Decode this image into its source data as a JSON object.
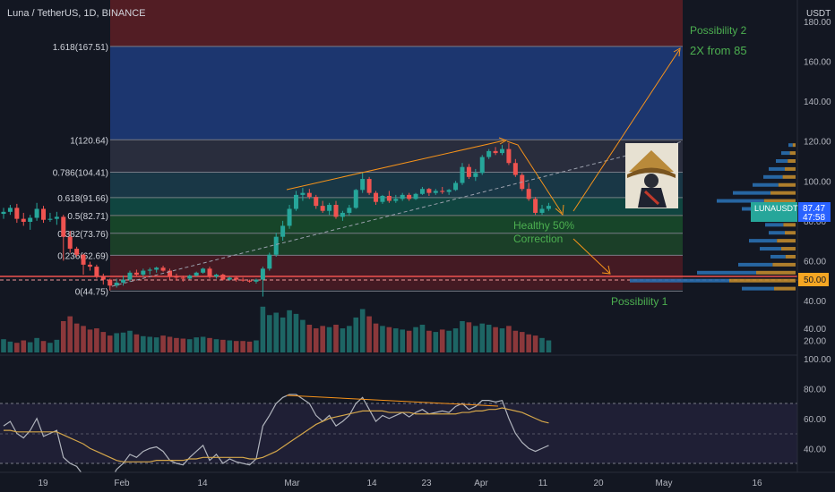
{
  "header": {
    "symbol_title": "Luna / TetherUS, 1D, BINANCE",
    "currency": "USDT"
  },
  "colors": {
    "background": "#131722",
    "up_candle": "#26a69a",
    "down_candle": "#ef5350",
    "annotation_orange": "#f7931a",
    "annotation_green": "#4caf50",
    "rsi_line": "#b0b4bd",
    "rsi_ma": "#d4a64a",
    "price_label_blue": "#2962ff"
  },
  "chart_data": [
    {
      "type": "candlestick",
      "title": "Luna / TetherUS, 1D, BINANCE",
      "ylabel": "USDT",
      "ylim": [
        40,
        185
      ],
      "y_ticks": [
        40,
        60,
        80,
        100,
        120,
        140,
        160,
        180
      ],
      "y_tick_labels": [
        "40.00",
        "60.00",
        "80.00",
        "100.00",
        "120.00",
        "140.00",
        "160.00",
        "180.00"
      ],
      "x_tick_labels": [
        "19",
        "Feb",
        "14",
        "Mar",
        "14",
        "23",
        "Apr",
        "11",
        "20",
        "May",
        "16"
      ],
      "candles": [
        [
          83.5,
          86.5,
          81.0,
          84.5
        ],
        [
          84.5,
          88.0,
          83.0,
          86.5
        ],
        [
          86.5,
          88.5,
          79.0,
          81.0
        ],
        [
          81.0,
          84.0,
          77.5,
          79.5
        ],
        [
          79.5,
          83.0,
          75.5,
          81.5
        ],
        [
          81.5,
          89.0,
          80.0,
          86.0
        ],
        [
          86.0,
          87.5,
          79.0,
          80.5
        ],
        [
          80.5,
          84.0,
          79.5,
          81.0
        ],
        [
          81.0,
          84.5,
          78.0,
          82.0
        ],
        [
          82.0,
          83.0,
          60.0,
          72.0
        ],
        [
          72.0,
          75.0,
          64.0,
          66.0
        ],
        [
          66.0,
          67.0,
          62.0,
          63.0
        ],
        [
          63.0,
          63.5,
          53.0,
          58.0
        ],
        [
          58.0,
          59.5,
          55.0,
          57.0
        ],
        [
          57.0,
          58.0,
          51.0,
          52.0
        ],
        [
          52.0,
          53.5,
          48.0,
          50.5
        ],
        [
          50.5,
          51.0,
          45.0,
          47.5
        ],
        [
          47.5,
          51.0,
          46.5,
          49.0
        ],
        [
          49.0,
          52.5,
          47.5,
          50.5
        ],
        [
          50.5,
          55.0,
          49.5,
          54.0
        ],
        [
          54.0,
          55.5,
          52.0,
          53.0
        ],
        [
          53.0,
          56.0,
          52.0,
          55.0
        ],
        [
          55.0,
          56.5,
          53.0,
          55.5
        ],
        [
          55.5,
          57.0,
          54.0,
          56.5
        ],
        [
          56.5,
          57.5,
          54.5,
          55.0
        ],
        [
          55.0,
          56.0,
          50.5,
          52.0
        ],
        [
          52.0,
          53.5,
          50.0,
          51.5
        ],
        [
          51.5,
          52.5,
          49.5,
          51.0
        ],
        [
          51.0,
          53.0,
          50.5,
          52.5
        ],
        [
          52.5,
          54.5,
          52.0,
          54.0
        ],
        [
          54.0,
          56.5,
          53.5,
          56.0
        ],
        [
          56.0,
          57.0,
          51.0,
          52.0
        ],
        [
          52.0,
          53.5,
          51.0,
          53.0
        ],
        [
          53.0,
          53.5,
          50.0,
          50.5
        ],
        [
          50.5,
          52.0,
          50.0,
          51.5
        ],
        [
          51.5,
          52.0,
          49.5,
          50.5
        ],
        [
          50.5,
          51.5,
          49.5,
          50.0
        ],
        [
          50.0,
          50.5,
          49.0,
          49.5
        ],
        [
          49.5,
          51.0,
          48.5,
          50.5
        ],
        [
          50.5,
          57.0,
          42.0,
          56.0
        ],
        [
          56.0,
          64.0,
          55.0,
          63.0
        ],
        [
          63.0,
          74.0,
          62.0,
          72.0
        ],
        [
          72.0,
          80.0,
          70.0,
          77.5
        ],
        [
          77.5,
          88.0,
          76.0,
          86.0
        ],
        [
          86.0,
          95.0,
          85.0,
          93.0
        ],
        [
          93.0,
          96.5,
          90.0,
          94.0
        ],
        [
          94.0,
          96.0,
          91.0,
          92.0
        ],
        [
          92.0,
          93.0,
          86.0,
          87.5
        ],
        [
          87.5,
          90.0,
          84.0,
          85.0
        ],
        [
          85.0,
          89.0,
          83.0,
          88.0
        ],
        [
          88.0,
          90.0,
          81.0,
          82.0
        ],
        [
          82.0,
          85.0,
          80.0,
          84.0
        ],
        [
          84.0,
          88.0,
          82.5,
          86.5
        ],
        [
          86.5,
          96.0,
          86.0,
          95.5
        ],
        [
          95.5,
          104.0,
          94.0,
          101.0
        ],
        [
          101.0,
          102.0,
          93.0,
          94.0
        ],
        [
          94.0,
          95.0,
          88.0,
          89.5
        ],
        [
          89.5,
          93.0,
          88.5,
          92.5
        ],
        [
          92.5,
          95.0,
          89.0,
          90.0
        ],
        [
          90.0,
          93.0,
          89.0,
          91.0
        ],
        [
          91.0,
          94.0,
          90.0,
          93.0
        ],
        [
          93.0,
          94.0,
          90.0,
          91.0
        ],
        [
          91.0,
          94.0,
          90.5,
          93.5
        ],
        [
          93.5,
          97.0,
          93.0,
          96.0
        ],
        [
          96.0,
          96.5,
          92.5,
          94.0
        ],
        [
          94.0,
          96.0,
          93.0,
          95.0
        ],
        [
          95.0,
          97.0,
          93.5,
          94.5
        ],
        [
          94.5,
          96.0,
          93.0,
          95.5
        ],
        [
          95.5,
          100.0,
          95.0,
          99.0
        ],
        [
          99.0,
          109.0,
          98.0,
          107.0
        ],
        [
          107.0,
          108.5,
          101.0,
          102.0
        ],
        [
          102.0,
          106.0,
          100.0,
          104.0
        ],
        [
          104.0,
          113.0,
          103.0,
          112.0
        ],
        [
          112.0,
          116.0,
          111.0,
          115.0
        ],
        [
          115.0,
          117.0,
          113.0,
          114.0
        ],
        [
          114.0,
          118.0,
          113.0,
          116.0
        ],
        [
          116.0,
          119.0,
          108.0,
          109.0
        ],
        [
          109.0,
          111.0,
          102.0,
          103.0
        ],
        [
          103.0,
          104.0,
          95.0,
          96.0
        ],
        [
          96.0,
          99.0,
          90.0,
          91.0
        ],
        [
          91.0,
          92.0,
          83.0,
          84.0
        ],
        [
          84.0,
          88.0,
          83.0,
          86.0
        ],
        [
          86.0,
          89.0,
          85.0,
          87.5
        ]
      ],
      "volumes": [
        22,
        18,
        16,
        20,
        17,
        24,
        19,
        16,
        21,
        52,
        60,
        48,
        44,
        38,
        40,
        34,
        28,
        32,
        33,
        36,
        30,
        27,
        26,
        25,
        28,
        26,
        24,
        23,
        22,
        25,
        26,
        24,
        22,
        21,
        20,
        19,
        19,
        18,
        20,
        76,
        62,
        66,
        58,
        70,
        64,
        54,
        46,
        40,
        44,
        42,
        46,
        40,
        44,
        58,
        72,
        60,
        48,
        44,
        42,
        40,
        38,
        36,
        42,
        46,
        36,
        34,
        38,
        36,
        40,
        52,
        50,
        44,
        48,
        46,
        42,
        40,
        44,
        36,
        34,
        30,
        28,
        24,
        20
      ],
      "volume_panel": {
        "ylim": [
          0,
          95
        ],
        "y_ticks": [
          20,
          40
        ],
        "y_tick_labels": [
          "20.00",
          "40.00"
        ]
      },
      "fibonacci_levels": [
        {
          "label": "1.618(167.51)",
          "price": 167.51
        },
        {
          "label": "1(120.64)",
          "price": 120.64
        },
        {
          "label": "0.786(104.41)",
          "price": 104.41
        },
        {
          "label": "0.618(91.66)",
          "price": 91.66
        },
        {
          "label": "0.5(82.71)",
          "price": 82.71
        },
        {
          "label": "0.382(73.76)",
          "price": 73.76
        },
        {
          "label": "0.236(62.69)",
          "price": 62.69
        },
        {
          "label": "0(44.75)",
          "price": 44.75
        }
      ],
      "annotations": [
        {
          "text": "Possibility 2",
          "color": "#4caf50"
        },
        {
          "text": "2X from 85",
          "color": "#4caf50"
        },
        {
          "text": "Healthy 50%",
          "color": "#4caf50"
        },
        {
          "text": "Correction",
          "color": "#4caf50"
        },
        {
          "text": "Possibility 1",
          "color": "#4caf50"
        }
      ],
      "price_labels": [
        {
          "text": "LUNAUSDT",
          "value": 87.47,
          "value_text": "87.47",
          "countdown": "47:58"
        },
        {
          "value": 50.0,
          "value_text": "50.00"
        }
      ]
    },
    {
      "type": "line",
      "title": "",
      "ylim": [
        20,
        100
      ],
      "y_ticks": [
        40,
        60,
        80,
        100
      ],
      "y_tick_labels": [
        "40.00",
        "60.00",
        "80.00",
        "100.00"
      ],
      "bands": [
        30,
        50,
        70
      ],
      "series": [
        {
          "values": [
            55,
            58,
            50,
            47,
            52,
            60,
            48,
            50,
            52,
            34,
            30,
            28,
            22,
            24,
            20,
            22,
            18,
            26,
            30,
            36,
            34,
            38,
            40,
            41,
            38,
            32,
            30,
            29,
            34,
            38,
            42,
            32,
            36,
            30,
            33,
            31,
            30,
            29,
            33,
            55,
            62,
            70,
            74,
            76,
            76,
            73,
            70,
            62,
            58,
            62,
            55,
            58,
            62,
            70,
            74,
            66,
            58,
            62,
            60,
            62,
            64,
            61,
            64,
            66,
            63,
            64,
            65,
            64,
            68,
            70,
            66,
            68,
            72,
            72,
            71,
            72,
            60,
            50,
            44,
            40,
            38,
            40,
            42
          ]
        },
        {
          "values": [
            52,
            52,
            51,
            51,
            51,
            51,
            51,
            51,
            51,
            49,
            47,
            45,
            43,
            40,
            38,
            36,
            34,
            32,
            31,
            31,
            31,
            31,
            31,
            32,
            32,
            32,
            32,
            32,
            33,
            33,
            34,
            34,
            34,
            34,
            34,
            34,
            34,
            33,
            33,
            34,
            36,
            38,
            41,
            44,
            47,
            50,
            53,
            56,
            58,
            60,
            61,
            62,
            63,
            64,
            65,
            65,
            65,
            65,
            64,
            64,
            64,
            64,
            63,
            63,
            63,
            63,
            63,
            63,
            63,
            64,
            64,
            65,
            65,
            66,
            66,
            67,
            66,
            65,
            64,
            62,
            60,
            58,
            57
          ]
        }
      ]
    }
  ]
}
